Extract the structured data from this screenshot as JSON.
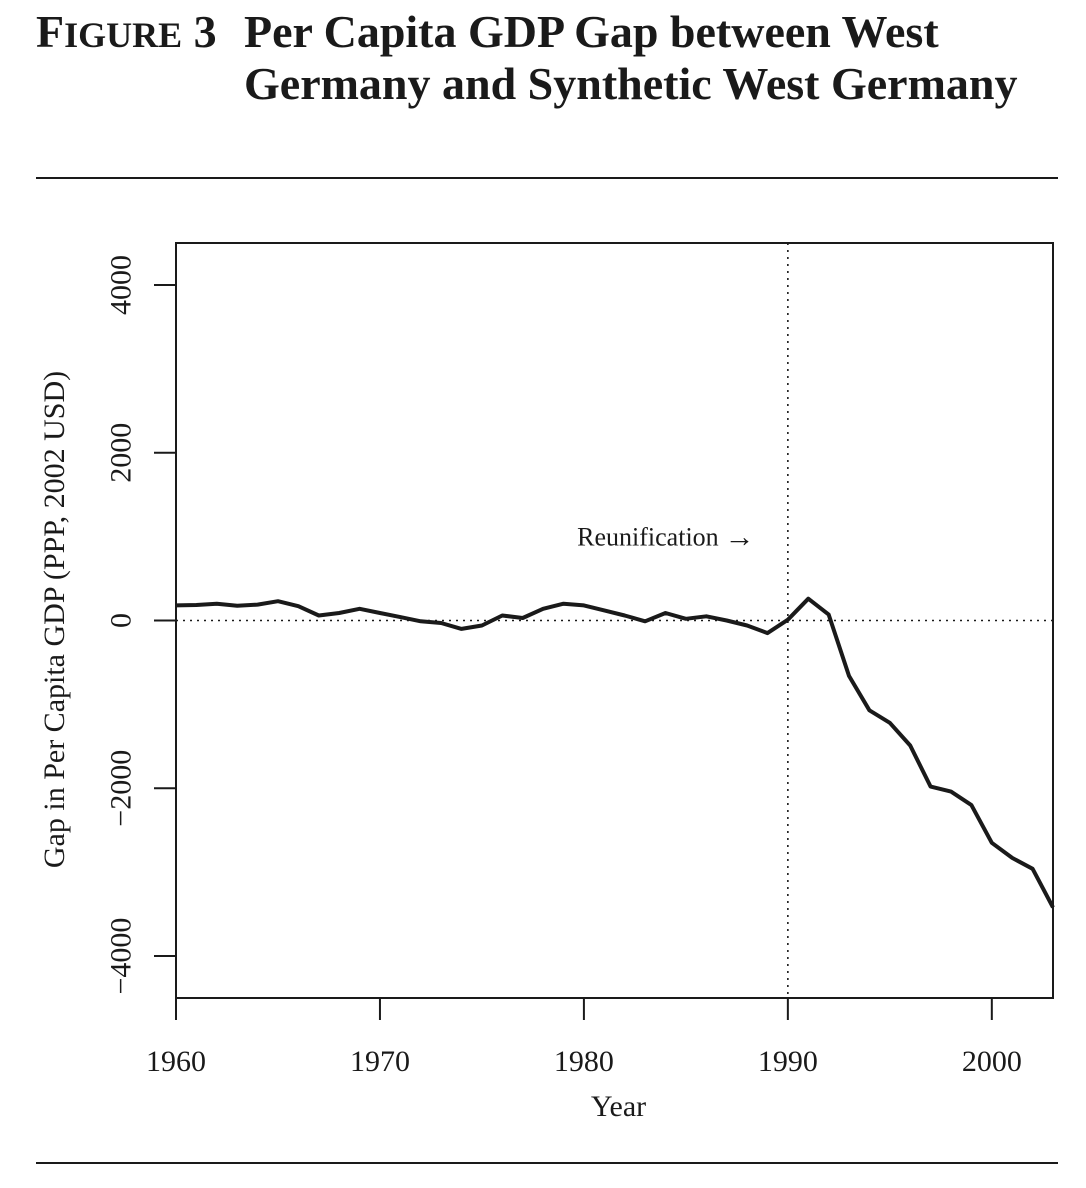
{
  "figure": {
    "label_first_letter": "F",
    "label_rest": "IGURE",
    "label_number": "3",
    "title": "Per Capita GDP Gap between West Germany and Synthetic West Germany"
  },
  "chart_data": {
    "type": "line",
    "title": "Per Capita GDP Gap between West Germany and Synthetic West Germany",
    "xlabel": "Year",
    "ylabel": "Gap in Per Capita GDP (PPP, 2002 USD)",
    "xlim": [
      1960,
      2003
    ],
    "ylim": [
      -4500,
      4500
    ],
    "xticks": [
      1960,
      1970,
      1980,
      1990,
      2000
    ],
    "yticks": [
      -4000,
      -2000,
      0,
      2000,
      4000
    ],
    "ytick_labels": [
      "−4000",
      "−2000",
      "0",
      "2000",
      "4000"
    ],
    "reference_lines": {
      "vertical_x": 1990,
      "horizontal_y": 0,
      "style": "dotted"
    },
    "annotation": {
      "text": "Reunification",
      "arrow": "→",
      "x": 1987,
      "y": 1000
    },
    "series": [
      {
        "name": "Gap",
        "x": [
          1960,
          1961,
          1962,
          1963,
          1964,
          1965,
          1966,
          1967,
          1968,
          1969,
          1970,
          1971,
          1972,
          1973,
          1974,
          1975,
          1976,
          1977,
          1978,
          1979,
          1980,
          1981,
          1982,
          1983,
          1984,
          1985,
          1986,
          1987,
          1988,
          1989,
          1990,
          1991,
          1992,
          1993,
          1994,
          1995,
          1996,
          1997,
          1998,
          1999,
          2000,
          2001,
          2002,
          2003
        ],
        "values": [
          180,
          185,
          200,
          175,
          190,
          230,
          170,
          60,
          90,
          140,
          90,
          40,
          -10,
          -30,
          -100,
          -60,
          60,
          30,
          140,
          200,
          180,
          120,
          60,
          -10,
          90,
          20,
          50,
          0,
          -60,
          -150,
          10,
          260,
          70,
          -660,
          -1070,
          -1220,
          -1490,
          -1980,
          -2040,
          -2200,
          -2650,
          -2830,
          -2960,
          -3420
        ]
      }
    ]
  }
}
